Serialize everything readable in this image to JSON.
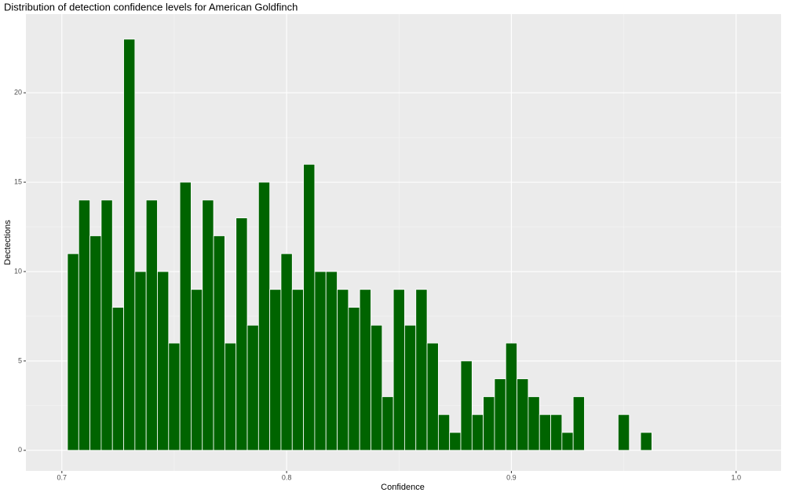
{
  "chart_data": {
    "type": "histogram",
    "title": "Distribution of detection confidence levels for American Goldfinch",
    "x_label": "Confidence",
    "y_label": "Dectections",
    "bins": [
      0.7025,
      0.7075,
      0.7125,
      0.7175,
      0.7225,
      0.7275,
      0.7325,
      0.7375,
      0.7425,
      0.7475,
      0.7525,
      0.7575,
      0.7625,
      0.7675,
      0.7725,
      0.7775,
      0.7825,
      0.7875,
      0.7925,
      0.7975,
      0.8025,
      0.8075,
      0.8125,
      0.8175,
      0.8225,
      0.8275,
      0.8325,
      0.8375,
      0.8425,
      0.8475,
      0.8525,
      0.8575,
      0.8625,
      0.8675,
      0.8725,
      0.8775,
      0.8825,
      0.8875,
      0.8925,
      0.8975,
      0.9025,
      0.9075,
      0.9125,
      0.9175,
      0.9225,
      0.9275,
      0.9325,
      0.9375,
      0.9425,
      0.9475,
      0.9525,
      0.9575,
      0.9625
    ],
    "counts": [
      11,
      14,
      12,
      14,
      8,
      23,
      10,
      14,
      10,
      6,
      15,
      9,
      14,
      12,
      6,
      13,
      7,
      15,
      9,
      11,
      9,
      16,
      10,
      10,
      9,
      8,
      9,
      7,
      3,
      9,
      7,
      9,
      6,
      2,
      1,
      5,
      2,
      3,
      4,
      6,
      4,
      3,
      2,
      2,
      1,
      3,
      0,
      0,
      0,
      2,
      0,
      1
    ],
    "color": "#006400",
    "xlim": [
      0.684,
      1.02
    ],
    "xticks": [
      0.7,
      0.8,
      0.9,
      {
        "value": 1.0,
        "label": "1.0"
      }
    ],
    "ylim": [
      -1.15,
      24.4
    ],
    "yticks": [
      0,
      5,
      10,
      15,
      20
    ],
    "grid": true,
    "minor_grid": true
  }
}
